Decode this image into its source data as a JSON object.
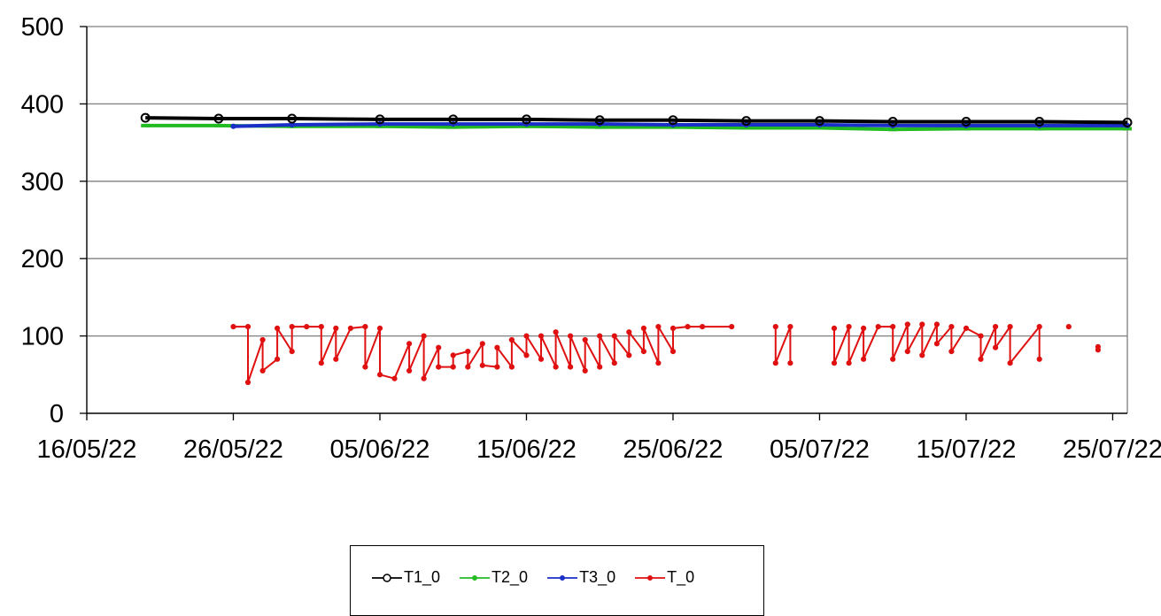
{
  "chart_data": {
    "type": "line",
    "title": "",
    "xlabel": "",
    "ylabel": "",
    "ylim": [
      0,
      500
    ],
    "yticks": [
      0,
      100,
      200,
      300,
      400,
      500
    ],
    "xlim": [
      "2022-05-16",
      "2022-07-26"
    ],
    "xticks": [
      "16/05/22",
      "26/05/22",
      "05/06/22",
      "15/06/22",
      "25/06/22",
      "05/07/22",
      "15/07/22",
      "25/07/22"
    ],
    "grid": "horizontal",
    "legend_position": "bottom",
    "series": [
      {
        "name": "T1_0",
        "color": "#000000",
        "marker": "circle",
        "x": [
          "2022-05-20",
          "2022-05-25",
          "2022-05-30",
          "2022-06-05",
          "2022-06-10",
          "2022-06-15",
          "2022-06-20",
          "2022-06-25",
          "2022-06-30",
          "2022-07-05",
          "2022-07-10",
          "2022-07-15",
          "2022-07-20",
          "2022-07-26"
        ],
        "y": [
          382,
          381,
          381,
          380,
          380,
          380,
          379,
          379,
          378,
          378,
          377,
          377,
          377,
          376
        ]
      },
      {
        "name": "T2_0",
        "color": "#22bb22",
        "marker": "dash",
        "x": [
          "2022-05-20",
          "2022-05-25",
          "2022-05-30",
          "2022-06-05",
          "2022-06-10",
          "2022-06-15",
          "2022-06-20",
          "2022-06-25",
          "2022-06-30",
          "2022-07-05",
          "2022-07-10",
          "2022-07-15",
          "2022-07-20",
          "2022-07-26"
        ],
        "y": [
          372,
          372,
          371,
          371,
          370,
          371,
          370,
          370,
          369,
          369,
          367,
          368,
          368,
          368
        ]
      },
      {
        "name": "T3_0",
        "color": "#1a2ec8",
        "marker": "dot",
        "x": [
          "2022-05-26",
          "2022-05-30",
          "2022-06-05",
          "2022-06-10",
          "2022-06-15",
          "2022-06-20",
          "2022-06-25",
          "2022-06-30",
          "2022-07-05",
          "2022-07-10",
          "2022-07-15",
          "2022-07-20",
          "2022-07-26"
        ],
        "y": [
          371,
          373,
          374,
          374,
          374,
          374,
          373,
          373,
          373,
          372,
          372,
          372,
          372
        ]
      },
      {
        "name": "T_0",
        "color": "#e01010",
        "marker": "dot",
        "segments": [
          {
            "x": [
              "2022-05-26",
              "2022-05-27",
              "2022-05-27",
              "2022-05-28",
              "2022-05-28",
              "2022-05-29",
              "2022-05-29",
              "2022-05-30",
              "2022-05-30",
              "2022-05-31",
              "2022-06-01",
              "2022-06-01",
              "2022-06-02",
              "2022-06-02",
              "2022-06-03",
              "2022-06-04",
              "2022-06-04",
              "2022-06-05",
              "2022-06-05",
              "2022-06-06",
              "2022-06-07",
              "2022-06-07",
              "2022-06-08",
              "2022-06-08",
              "2022-06-09",
              "2022-06-09",
              "2022-06-10",
              "2022-06-10",
              "2022-06-11",
              "2022-06-11",
              "2022-06-12",
              "2022-06-12",
              "2022-06-13",
              "2022-06-13",
              "2022-06-14",
              "2022-06-14",
              "2022-06-15",
              "2022-06-15",
              "2022-06-16",
              "2022-06-16",
              "2022-06-17",
              "2022-06-17",
              "2022-06-18",
              "2022-06-18",
              "2022-06-19",
              "2022-06-19",
              "2022-06-20",
              "2022-06-20",
              "2022-06-21",
              "2022-06-21",
              "2022-06-22",
              "2022-06-22",
              "2022-06-23",
              "2022-06-23",
              "2022-06-24",
              "2022-06-24",
              "2022-06-25",
              "2022-06-25",
              "2022-06-26",
              "2022-06-27",
              "2022-06-29"
            ],
            "y": [
              112,
              112,
              40,
              95,
              55,
              70,
              110,
              80,
              112,
              112,
              112,
              65,
              110,
              70,
              110,
              112,
              60,
              110,
              50,
              45,
              90,
              55,
              100,
              45,
              85,
              60,
              60,
              75,
              80,
              60,
              90,
              62,
              60,
              85,
              60,
              95,
              75,
              100,
              70,
              100,
              60,
              105,
              60,
              100,
              55,
              95,
              60,
              100,
              65,
              100,
              75,
              105,
              80,
              110,
              65,
              112,
              80,
              110,
              112,
              112,
              112
            ]
          },
          {
            "x": [
              "2022-07-02",
              "2022-07-02",
              "2022-07-03",
              "2022-07-03"
            ],
            "y": [
              112,
              65,
              112,
              65
            ]
          },
          {
            "x": [
              "2022-07-06",
              "2022-07-06",
              "2022-07-07",
              "2022-07-07",
              "2022-07-08",
              "2022-07-08",
              "2022-07-09",
              "2022-07-10",
              "2022-07-10",
              "2022-07-11",
              "2022-07-11",
              "2022-07-12",
              "2022-07-12",
              "2022-07-13",
              "2022-07-13",
              "2022-07-14",
              "2022-07-14",
              "2022-07-15",
              "2022-07-16",
              "2022-07-16",
              "2022-07-17",
              "2022-07-17",
              "2022-07-18",
              "2022-07-18",
              "2022-07-20",
              "2022-07-20"
            ],
            "y": [
              110,
              65,
              112,
              65,
              110,
              70,
              112,
              112,
              70,
              115,
              80,
              115,
              75,
              115,
              90,
              112,
              80,
              110,
              100,
              70,
              112,
              85,
              112,
              65,
              112,
              70
            ]
          },
          {
            "x": [
              "2022-07-22"
            ],
            "y": [
              112
            ]
          },
          {
            "x": [
              "2022-07-24",
              "2022-07-24"
            ],
            "y": [
              82,
              86
            ]
          }
        ]
      }
    ]
  }
}
